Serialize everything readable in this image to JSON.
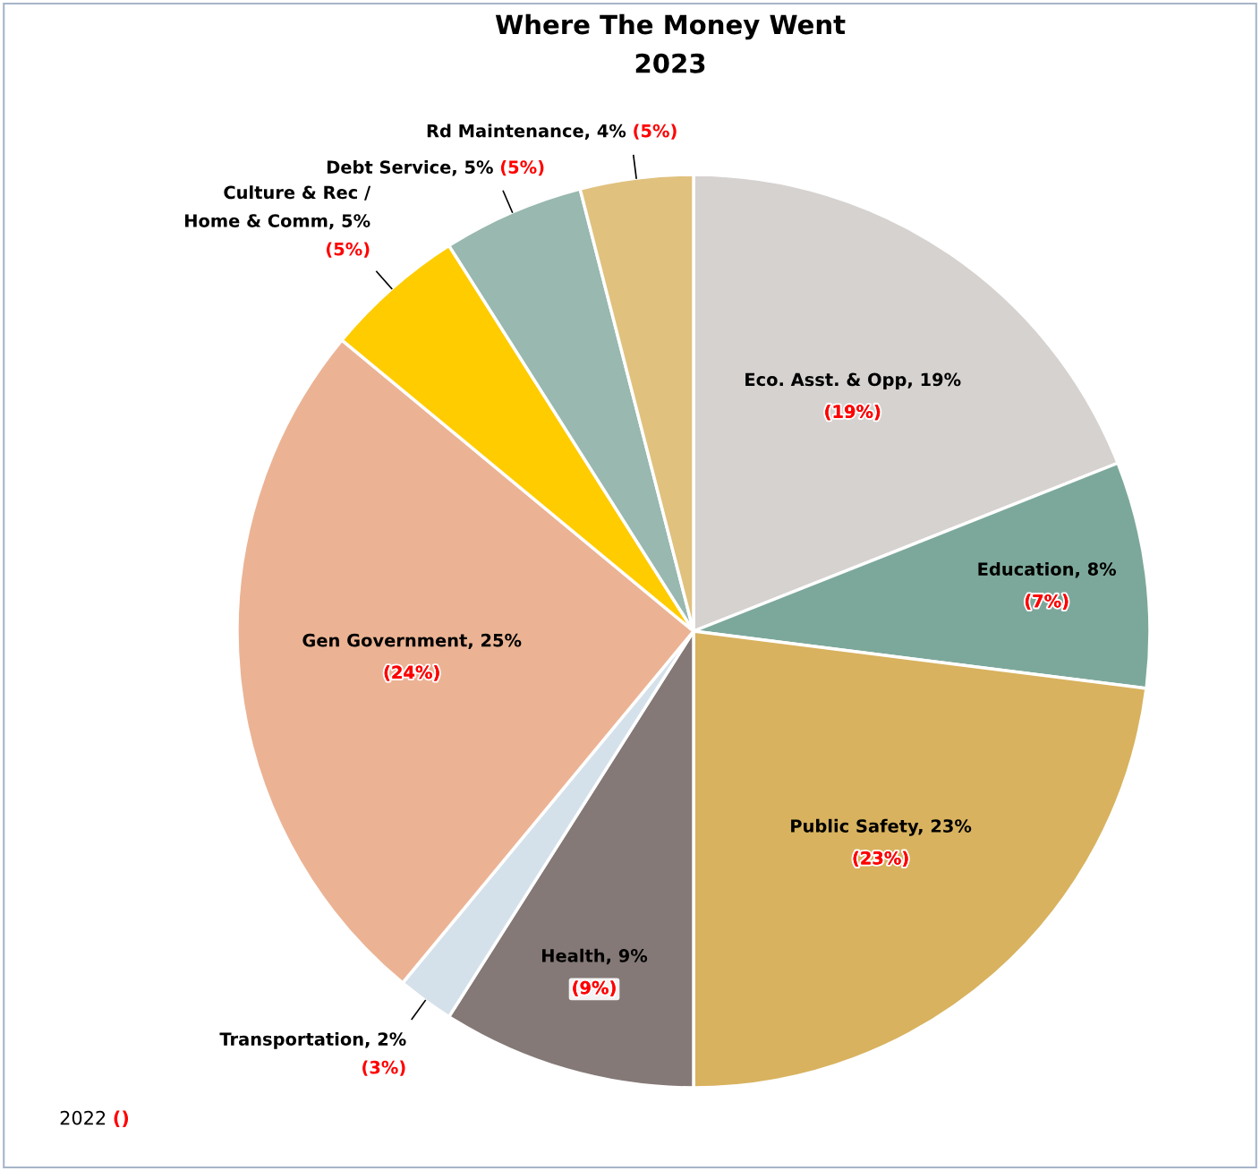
{
  "chart_data": {
    "type": "pie",
    "title": "Where The Money Went",
    "subtitle": "2023",
    "categories": [
      "Eco. Asst. & Opp",
      "Education",
      "Public Safety",
      "Health",
      "Transportation",
      "Gen Government",
      "Culture & Rec / Home & Comm",
      "Debt Service",
      "Rd Maintenance"
    ],
    "values": [
      19,
      8,
      23,
      9,
      2,
      25,
      5,
      5,
      4
    ],
    "value_labels": [
      "19%",
      "8%",
      "23%",
      "9%",
      "2%",
      "25%",
      "5%",
      "5%",
      "4%"
    ],
    "colors": [
      "#d6d2d0",
      "#7ca89b",
      "#d8b25f",
      "#847977",
      "#d5e1ea",
      "#ebb394",
      "#ffcc00",
      "#98b8b0",
      "#e0c17e"
    ],
    "annotations": [
      {
        "text": "(19%)",
        "x": "Eco. Asst. & Opp"
      },
      {
        "text": "(7%)",
        "x": "Education"
      },
      {
        "text": "(23%)",
        "x": "Public Safety"
      },
      {
        "text": "(9%)",
        "x": "Health"
      },
      {
        "text": "(3%)",
        "x": "Transportation"
      },
      {
        "text": "(24%)",
        "x": "Gen Government"
      },
      {
        "text": "(5%)",
        "x": "Culture & Rec / Home & Comm"
      },
      {
        "text": "(5%)",
        "x": "Debt Service"
      },
      {
        "text": "(5%)",
        "x": "Rd Maintenance"
      },
      "2022 ()"
    ],
    "legend": false
  }
}
